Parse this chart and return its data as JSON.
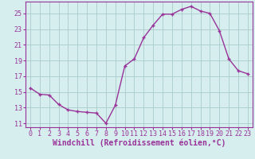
{
  "x": [
    0,
    1,
    2,
    3,
    4,
    5,
    6,
    7,
    8,
    9,
    10,
    11,
    12,
    13,
    14,
    15,
    16,
    17,
    18,
    19,
    20,
    21,
    22,
    23
  ],
  "y": [
    15.5,
    14.7,
    14.6,
    13.4,
    12.7,
    12.5,
    12.4,
    12.3,
    11.0,
    13.3,
    18.3,
    19.2,
    21.9,
    23.5,
    24.9,
    24.9,
    25.5,
    25.9,
    25.3,
    25.0,
    22.8,
    19.2,
    17.7,
    17.3
  ],
  "line_color": "#993399",
  "marker": "+",
  "background_color": "#d6eeee",
  "grid_color": "#aacccc",
  "xlabel": "Windchill (Refroidissement éolien,°C)",
  "xlabel_color": "#993399",
  "tick_color": "#993399",
  "ylim": [
    10.5,
    26.5
  ],
  "yticks": [
    11,
    13,
    15,
    17,
    19,
    21,
    23,
    25
  ],
  "xticks": [
    0,
    1,
    2,
    3,
    4,
    5,
    6,
    7,
    8,
    9,
    10,
    11,
    12,
    13,
    14,
    15,
    16,
    17,
    18,
    19,
    20,
    21,
    22,
    23
  ],
  "title_fontsize": 7,
  "tick_fontsize": 6,
  "line_width": 1.0,
  "marker_size": 3
}
